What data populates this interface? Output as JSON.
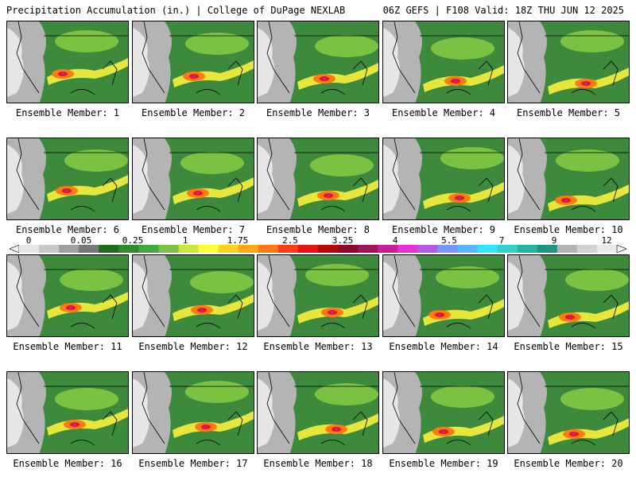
{
  "header": {
    "title": "Precipitation Accumulation (in.) | College of DuPage NEXLAB",
    "run": "06Z GEFS | F108 Valid: 18Z THU JUN 12 2025"
  },
  "colorbar": {
    "labels": [
      "0",
      "0.05",
      "0.25",
      "1",
      "1.75",
      "2.5",
      "3.25",
      "4",
      "5.5",
      "7",
      "9",
      "12"
    ],
    "colors": [
      "#e6e6e6",
      "#c8c8c8",
      "#a0a0a0",
      "#787878",
      "#1f6b1f",
      "#2e8b2e",
      "#43a843",
      "#7cc242",
      "#c8e63c",
      "#ffff32",
      "#ffd21e",
      "#ffaa14",
      "#ff7a14",
      "#ff3c14",
      "#e61414",
      "#b40a0a",
      "#8c0a28",
      "#a0145a",
      "#c81e96",
      "#e632d2",
      "#b45ae6",
      "#7896ff",
      "#5ab4ff",
      "#32e6ff",
      "#32d2c8",
      "#28b4a0",
      "#1e9682",
      "#b4b4b4",
      "#d2d2d2",
      "#ebebeb"
    ]
  },
  "members": [
    {
      "label": "Ensemble Member: 1"
    },
    {
      "label": "Ensemble Member: 2"
    },
    {
      "label": "Ensemble Member: 3"
    },
    {
      "label": "Ensemble Member: 4"
    },
    {
      "label": "Ensemble Member: 5"
    },
    {
      "label": "Ensemble Member: 6"
    },
    {
      "label": "Ensemble Member: 7"
    },
    {
      "label": "Ensemble Member: 8"
    },
    {
      "label": "Ensemble Member: 9"
    },
    {
      "label": "Ensemble Member: 10"
    },
    {
      "label": "Ensemble Member: 11"
    },
    {
      "label": "Ensemble Member: 12"
    },
    {
      "label": "Ensemble Member: 13"
    },
    {
      "label": "Ensemble Member: 14"
    },
    {
      "label": "Ensemble Member: 15"
    },
    {
      "label": "Ensemble Member: 16"
    },
    {
      "label": "Ensemble Member: 17"
    },
    {
      "label": "Ensemble Member: 18"
    },
    {
      "label": "Ensemble Member: 19"
    },
    {
      "label": "Ensemble Member: 20"
    }
  ]
}
